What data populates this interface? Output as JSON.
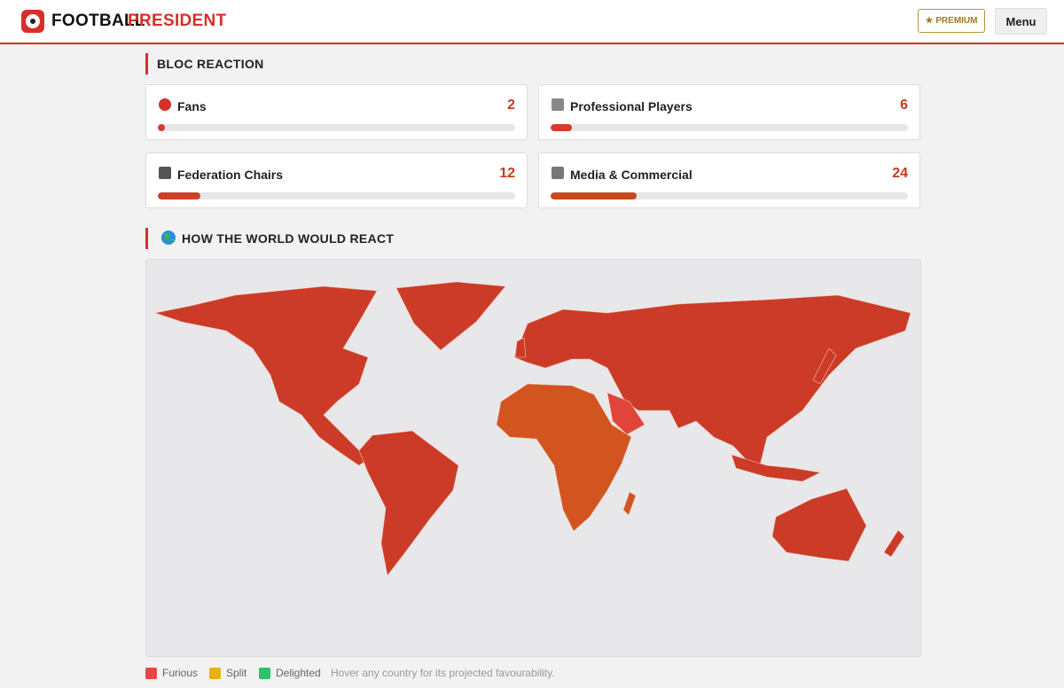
{
  "header": {
    "brand_first": "FOOTBALL",
    "brand_second": "PRESIDENT",
    "premium": "★ PREMIUM",
    "menu": "Menu"
  },
  "bloc_reaction": {
    "title": "BLOC REACTION",
    "blocs": [
      {
        "name": "Fans",
        "value": 2,
        "color": "#d63a32"
      },
      {
        "name": "Professional Players",
        "value": 6,
        "color": "#d43c2c"
      },
      {
        "name": "Federation Chairs",
        "value": 12,
        "color": "#cf3f26"
      },
      {
        "name": "Media & Commercial",
        "value": 24,
        "color": "#c9491d"
      }
    ]
  },
  "world": {
    "title": "HOW THE WORLD WOULD REACT",
    "legend": [
      {
        "label": "Furious",
        "color": "#e84545"
      },
      {
        "label": "Split",
        "color": "#e8b10f"
      },
      {
        "label": "Delighted",
        "color": "#2ec26a"
      }
    ],
    "hint": "Hover any country for its projected favourability."
  }
}
